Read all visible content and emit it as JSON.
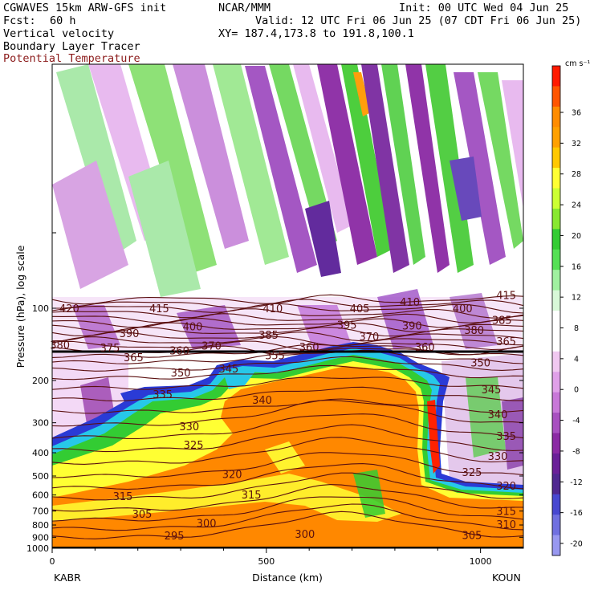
{
  "header": {
    "model": "CGWAVES 15km ARW-GFS init",
    "org": "NCAR/MMM",
    "init": "Init: 00 UTC Wed 04 Jun 25",
    "fcst_label": "Fcst:",
    "fcst_value": "60 h",
    "valid": "Valid: 12 UTC Fri 06 Jun 25 (07 CDT Fri 06 Jun 25)",
    "field1": "Vertical velocity",
    "xy": "XY= 187.4,173.8 to 191.8,100.1",
    "field2": "Boundary Layer Tracer",
    "field3": "Potential Temperature"
  },
  "colors": {
    "theta_contour": "#5a0f0f",
    "tracer_blue": "#2a3bd6",
    "tracer_cyan": "#27c8e8",
    "tracer_green": "#33cc33",
    "tracer_yellow": "#ffff33",
    "tracer_orange": "#ff8800",
    "tracer_red": "#ff2200",
    "w_green": "#33cc33",
    "w_purple": "#8b2aa4",
    "w_lilac": "#e7b7ef"
  },
  "chart_data": {
    "type": "heatmap",
    "title": "Vertical velocity",
    "xlabel": "Distance (km)",
    "ylabel": "Pressure (hPa), log scale",
    "xlim": [
      0,
      1100
    ],
    "ylim": [
      1000,
      10
    ],
    "x_ticks": [
      0,
      500,
      1000
    ],
    "x_tick_labels": [
      "0",
      "500",
      "1000"
    ],
    "y_ticks": [
      100,
      200,
      300,
      400,
      500,
      600,
      700,
      800,
      900,
      1000
    ],
    "y_tick_labels": [
      "100",
      "200",
      "300",
      "400",
      "500",
      "600",
      "700",
      "800",
      "900",
      "1000"
    ],
    "y_scale": "log",
    "endpoints": {
      "left": "KABR",
      "right": "KOUN"
    },
    "colorbar": {
      "units": "cm s⁻¹",
      "ticks": [
        36,
        32,
        28,
        24,
        20,
        16,
        12,
        8,
        4,
        0,
        -4,
        -8,
        -12,
        -16,
        -20
      ],
      "colors": [
        "#ff1a00",
        "#ff5500",
        "#ff8c00",
        "#ffa000",
        "#ffc800",
        "#ffff33",
        "#ccff33",
        "#88e830",
        "#33cc33",
        "#55e055",
        "#a0f0a0",
        "#d8f8d8",
        "#ffffff",
        "#ffffff",
        "#f0c8f0",
        "#e0a0e8",
        "#c878d8",
        "#a850c0",
        "#8b2aa4",
        "#6a2098",
        "#502890",
        "#4848d0",
        "#7070e0",
        "#9898f0"
      ]
    },
    "tropopause_hPa": 150,
    "theta_labels": [
      {
        "label": "420",
        "x": 40,
        "p": 100
      },
      {
        "label": "415",
        "x": 250,
        "p": 100
      },
      {
        "label": "410",
        "x": 515,
        "p": 100
      },
      {
        "label": "405",
        "x": 718,
        "p": 100
      },
      {
        "label": "410",
        "x": 835,
        "p": 94
      },
      {
        "label": "415",
        "x": 1060,
        "p": 88
      },
      {
        "label": "400",
        "x": 328,
        "p": 119
      },
      {
        "label": "395",
        "x": 688,
        "p": 117
      },
      {
        "label": "390",
        "x": 840,
        "p": 118
      },
      {
        "label": "400",
        "x": 958,
        "p": 100
      },
      {
        "label": "385",
        "x": 1050,
        "p": 112
      },
      {
        "label": "390",
        "x": 180,
        "p": 127
      },
      {
        "label": "385",
        "x": 505,
        "p": 129
      },
      {
        "label": "380",
        "x": 985,
        "p": 123
      },
      {
        "label": "370",
        "x": 740,
        "p": 131
      },
      {
        "label": "365",
        "x": 1060,
        "p": 137
      },
      {
        "label": "380",
        "x": 18,
        "p": 142
      },
      {
        "label": "375",
        "x": 135,
        "p": 146
      },
      {
        "label": "370",
        "x": 372,
        "p": 143
      },
      {
        "label": "360",
        "x": 297,
        "p": 150
      },
      {
        "label": "365",
        "x": 190,
        "p": 160
      },
      {
        "label": "360",
        "x": 600,
        "p": 145
      },
      {
        "label": "360",
        "x": 870,
        "p": 145
      },
      {
        "label": "355",
        "x": 520,
        "p": 157
      },
      {
        "label": "350",
        "x": 300,
        "p": 185
      },
      {
        "label": "345",
        "x": 412,
        "p": 178
      },
      {
        "label": "350",
        "x": 1000,
        "p": 168
      },
      {
        "label": "345",
        "x": 1025,
        "p": 218
      },
      {
        "label": "340",
        "x": 490,
        "p": 241
      },
      {
        "label": "335",
        "x": 258,
        "p": 228
      },
      {
        "label": "340",
        "x": 1040,
        "p": 276
      },
      {
        "label": "330",
        "x": 320,
        "p": 310
      },
      {
        "label": "335",
        "x": 1060,
        "p": 340
      },
      {
        "label": "325",
        "x": 330,
        "p": 370
      },
      {
        "label": "330",
        "x": 1040,
        "p": 413
      },
      {
        "label": "325",
        "x": 980,
        "p": 482
      },
      {
        "label": "320",
        "x": 420,
        "p": 491
      },
      {
        "label": "320",
        "x": 1060,
        "p": 548
      },
      {
        "label": "315",
        "x": 165,
        "p": 606
      },
      {
        "label": "315",
        "x": 465,
        "p": 597
      },
      {
        "label": "315",
        "x": 1060,
        "p": 700
      },
      {
        "label": "305",
        "x": 210,
        "p": 717
      },
      {
        "label": "300",
        "x": 360,
        "p": 786
      },
      {
        "label": "300",
        "x": 590,
        "p": 870
      },
      {
        "label": "310",
        "x": 1060,
        "p": 795
      },
      {
        "label": "295",
        "x": 285,
        "p": 883
      },
      {
        "label": "305",
        "x": 980,
        "p": 880
      }
    ]
  }
}
